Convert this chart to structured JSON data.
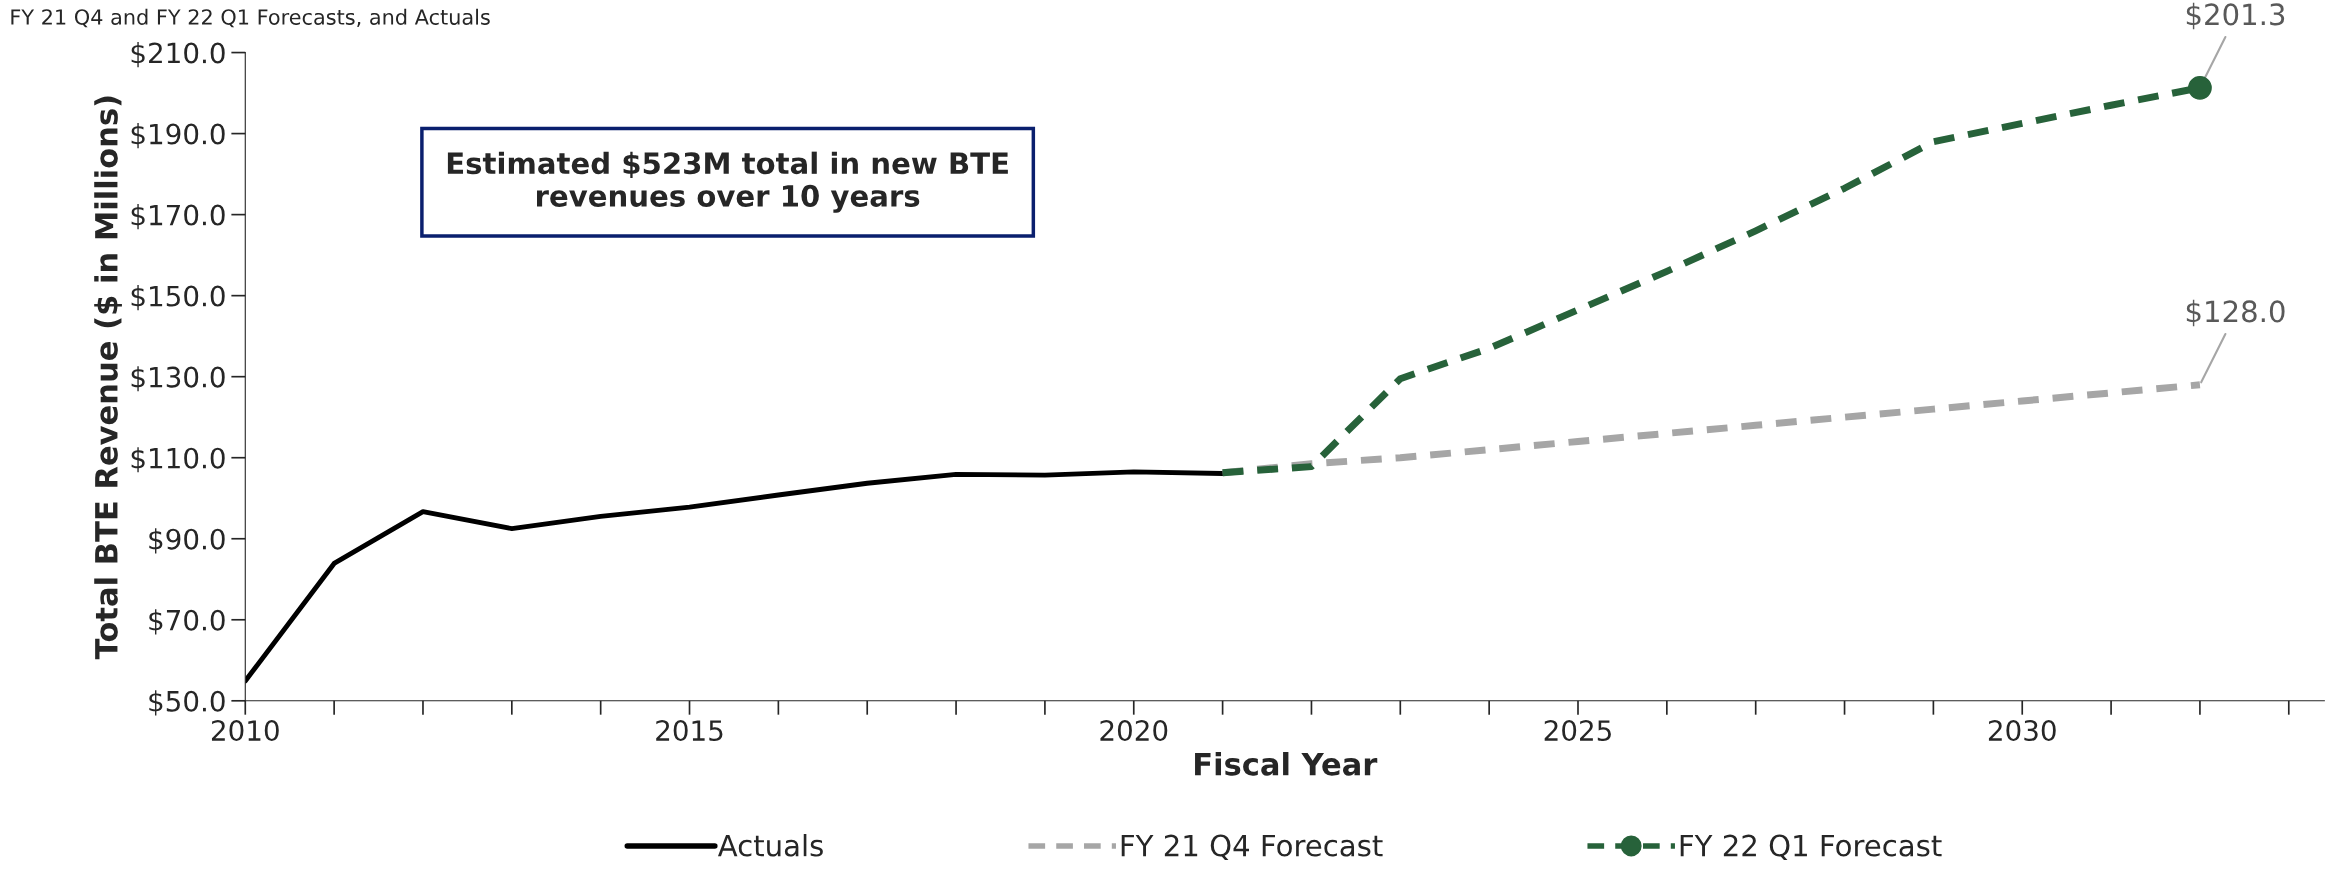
{
  "chart_data": {
    "type": "line",
    "title": "FY 21 Q4 and FY 22 Q1 Forecasts, and Actuals",
    "xlabel": "Fiscal Year",
    "ylabel": "Total BTE Revenue ($ in Millions)",
    "series": [
      {
        "name": "Actuals",
        "color": "#000000",
        "line_style": "solid",
        "x": [
          2010,
          2011,
          2012,
          2013,
          2014,
          2015,
          2016,
          2017,
          2018,
          2019,
          2020,
          2021
        ],
        "values": [
          54.9,
          83.9,
          96.7,
          92.5,
          95.5,
          97.8,
          100.8,
          103.7,
          105.9,
          105.7,
          106.5,
          106.1
        ]
      },
      {
        "name": "FY 21 Q4 Forecast",
        "color": "#a6a6a6",
        "line_style": "dashed",
        "x": [
          2021,
          2022,
          2023,
          2024,
          2025,
          2026,
          2027,
          2028,
          2029,
          2030,
          2031,
          2032
        ],
        "values": [
          106.3,
          108.5,
          110.0,
          112.0,
          114.0,
          116.0,
          118.0,
          120.0,
          122.0,
          124.0,
          126.0,
          128.0
        ]
      },
      {
        "name": "FY 22 Q1 Forecast",
        "color": "#27623a",
        "line_style": "dashed",
        "x": [
          2021,
          2022,
          2023,
          2024,
          2025,
          2026,
          2027,
          2028,
          2029,
          2030,
          2031,
          2032
        ],
        "values": [
          106.3,
          107.8,
          129.5,
          137.0,
          146.5,
          156.0,
          166.0,
          176.5,
          188.0,
          192.5,
          197.0,
          201.3
        ]
      },
      {
        "type": "scatter",
        "color": "#27623a",
        "marker": "circle",
        "x": [
          2032
        ],
        "values": [
          201.3
        ]
      }
    ],
    "annotations": [
      {
        "text": "$201.3",
        "x": 2032,
        "y": 201.3
      },
      {
        "text": "$128.0",
        "x": 2032,
        "y": 128.0
      },
      "Estimated $523M total in new BTE revenues over 10 years"
    ],
    "xlim": [
      2010,
      2033.4
    ],
    "xticks": [
      2010,
      {
        "value": 2011,
        "label": null
      },
      {
        "value": 2012,
        "label": null
      },
      {
        "value": 2013,
        "label": null
      },
      {
        "value": 2014,
        "label": null
      },
      2015,
      {
        "value": 2016,
        "label": null
      },
      {
        "value": 2017,
        "label": null
      },
      {
        "value": 2018,
        "label": null
      },
      {
        "value": 2019,
        "label": null
      },
      2020,
      {
        "value": 2021,
        "label": null
      },
      {
        "value": 2022,
        "label": null
      },
      {
        "value": 2023,
        "label": null
      },
      {
        "value": 2024,
        "label": null
      },
      2025,
      {
        "value": 2026,
        "label": null
      },
      {
        "value": 2027,
        "label": null
      },
      {
        "value": 2028,
        "label": null
      },
      {
        "value": 2029,
        "label": null
      },
      2030,
      {
        "value": 2031,
        "label": null
      },
      {
        "value": 2032,
        "label": null
      },
      {
        "value": 2033,
        "label": null
      }
    ],
    "ylim": [
      50,
      210
    ],
    "yticks": [
      {
        "value": 50,
        "label": "$50.0"
      },
      {
        "value": 70,
        "label": "$70.0"
      },
      {
        "value": 90,
        "label": "$90.0"
      },
      {
        "value": 110,
        "label": "$110.0"
      },
      {
        "value": 130,
        "label": "$130.0"
      },
      {
        "value": 150,
        "label": "$150.0"
      },
      {
        "value": 170,
        "label": "$170.0"
      },
      {
        "value": 190,
        "label": "$190.0"
      },
      {
        "value": 210,
        "label": "$210.0"
      }
    ],
    "grid": false,
    "legend": "bottom"
  }
}
